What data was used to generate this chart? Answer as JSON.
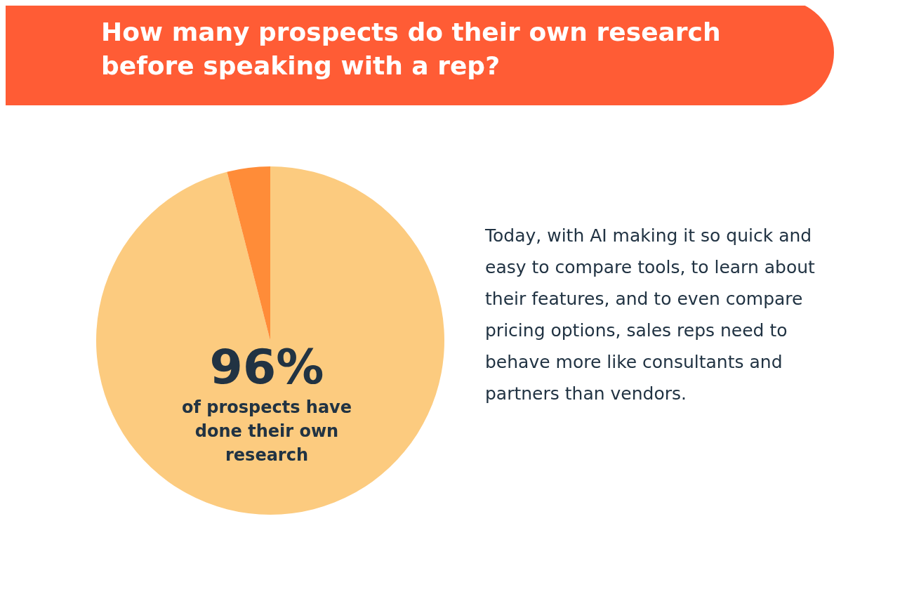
{
  "chart_data": {
    "type": "pie",
    "title": "How many prospects do their own research before speaking with a rep?",
    "categories": [
      "of prospects have done their own research",
      null
    ],
    "values": [
      96,
      4
    ],
    "value_labels": [
      "96%",
      null
    ],
    "colors": [
      "#fccb7f",
      "#ff8c38"
    ],
    "annotations": [
      "Today, with AI making it so quick and easy to compare tools, to learn about their features, and to even compare pricing options, sales reps need to behave more like consultants and partners than vendors."
    ]
  }
}
